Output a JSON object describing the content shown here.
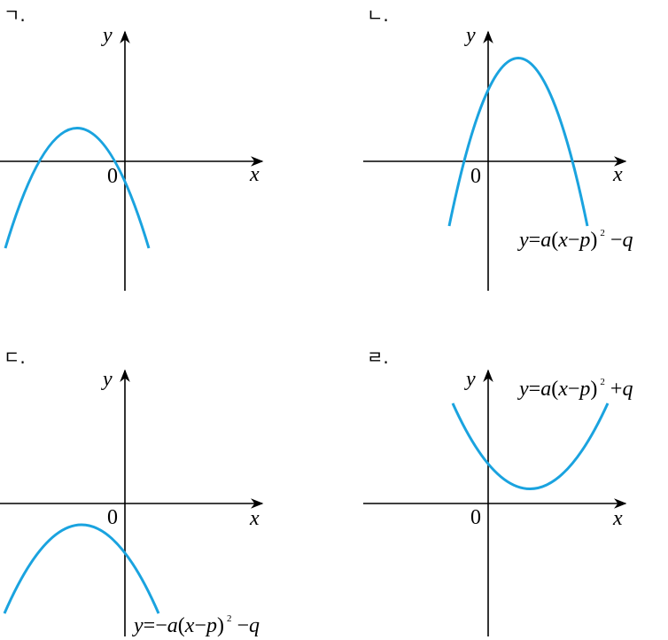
{
  "panels": [
    {
      "id": "ga",
      "label": "ㄱ.",
      "y_label": "y",
      "x_label": "x",
      "origin_label": "0",
      "equation": null
    },
    {
      "id": "na",
      "label": "ㄴ.",
      "y_label": "y",
      "x_label": "x",
      "origin_label": "0",
      "equation": {
        "y": "y",
        "eq": "=",
        "a": "a",
        "lp": "(",
        "x": "x",
        "minus": "−",
        "p": "p",
        "rp": ")",
        "exp": "2",
        "sign": "−",
        "q": "q"
      }
    },
    {
      "id": "da",
      "label": "ㄷ.",
      "y_label": "y",
      "x_label": "x",
      "origin_label": "0",
      "equation": {
        "y": "y",
        "eq": "=−",
        "a": "a",
        "lp": "(",
        "x": "x",
        "minus": "−",
        "p": "p",
        "rp": ")",
        "exp": "2",
        "sign": "−",
        "q": "q"
      }
    },
    {
      "id": "ra",
      "label": "ㄹ.",
      "y_label": "y",
      "x_label": "x",
      "origin_label": "0",
      "equation": {
        "y": "y",
        "eq": "=",
        "a": "a",
        "lp": "(",
        "x": "x",
        "minus": "−",
        "p": "p",
        "rp": ")",
        "exp": "2",
        "sign": "+",
        "q": "q"
      }
    }
  ],
  "colors": {
    "curve": "#1aa3df",
    "axis": "#000000"
  }
}
